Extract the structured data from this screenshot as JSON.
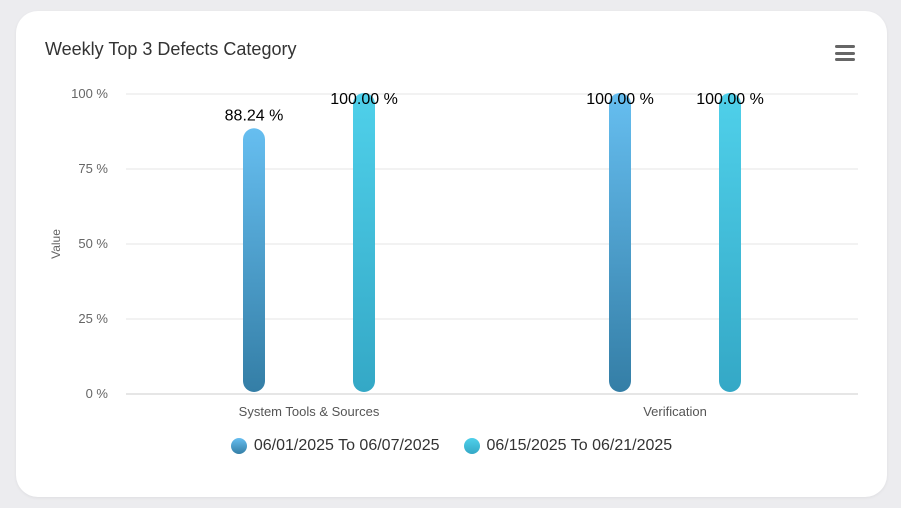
{
  "card": {
    "title": "Weekly Top 3 Defects Category"
  },
  "menu": {
    "icon": "hamburger-menu-icon"
  },
  "chart_data": {
    "type": "bar",
    "title": "Weekly Top 3 Defects Category",
    "xlabel": "",
    "ylabel": "Value",
    "ylim": [
      0,
      100
    ],
    "yticks": [
      0,
      25,
      50,
      75,
      100
    ],
    "ytick_suffix": " %",
    "grid": true,
    "legend_position": "bottom",
    "categories": [
      "System Tools & Sources",
      "Verification"
    ],
    "series": [
      {
        "name": "06/01/2025 To 06/07/2025",
        "values": [
          88.24,
          100.0
        ],
        "labels": [
          "88.24 %",
          "100.00 %"
        ],
        "color_top": "#66bef0",
        "color_bottom": "#347ea6"
      },
      {
        "name": "06/15/2025 To 06/21/2025",
        "values": [
          100.0,
          100.0
        ],
        "labels": [
          "100.00 %",
          "100.00 %"
        ],
        "color_top": "#4fd0ea",
        "color_bottom": "#34a8c6"
      }
    ]
  }
}
